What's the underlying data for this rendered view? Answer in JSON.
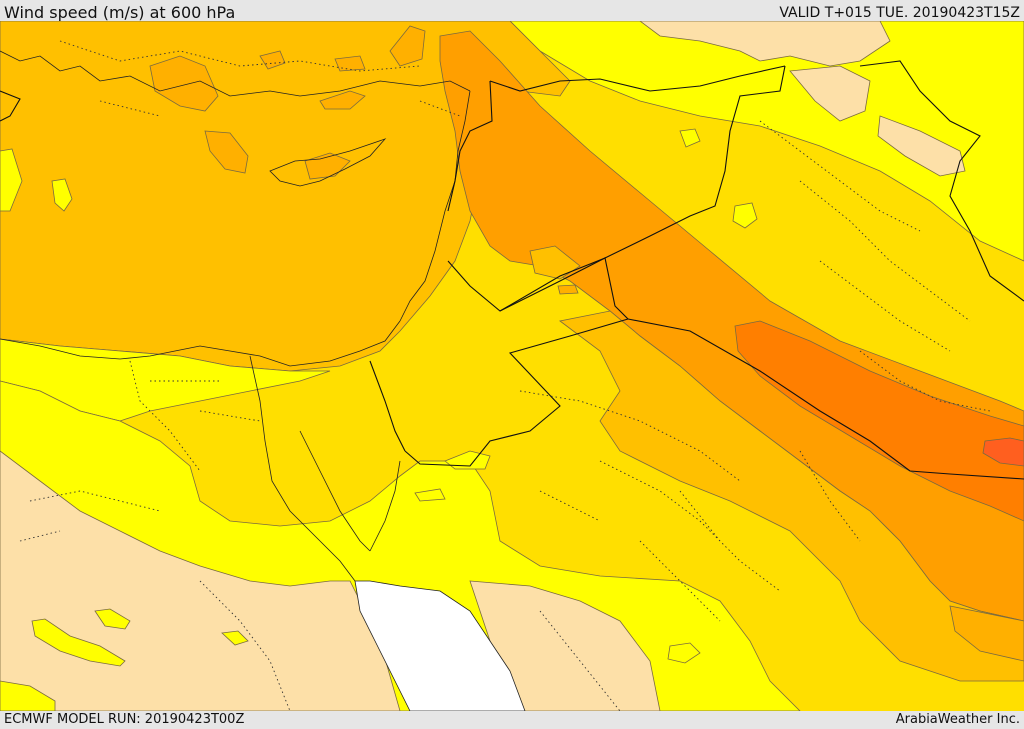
{
  "header": {
    "title": "Wind speed (m/s) at 600 hPa",
    "valid_time": "VALID T+015 TUE. 20190423T15Z"
  },
  "footer": {
    "model_run": "ECMWF MODEL RUN: 20190423T00Z",
    "credit": "ArabiaWeather Inc."
  },
  "map": {
    "variable": "wind speed",
    "level": "600 hPa",
    "colors": {
      "lightest": "#fde0a8",
      "yellow": "#ffff00",
      "gold": "#ffdf00",
      "amber": "#ffc000",
      "orange_light": "#ffb000",
      "orange": "#ff9f00",
      "orange_dark": "#ff7f00",
      "red_orange": "#ff5f1f",
      "sea_white": "#ffffff"
    }
  }
}
